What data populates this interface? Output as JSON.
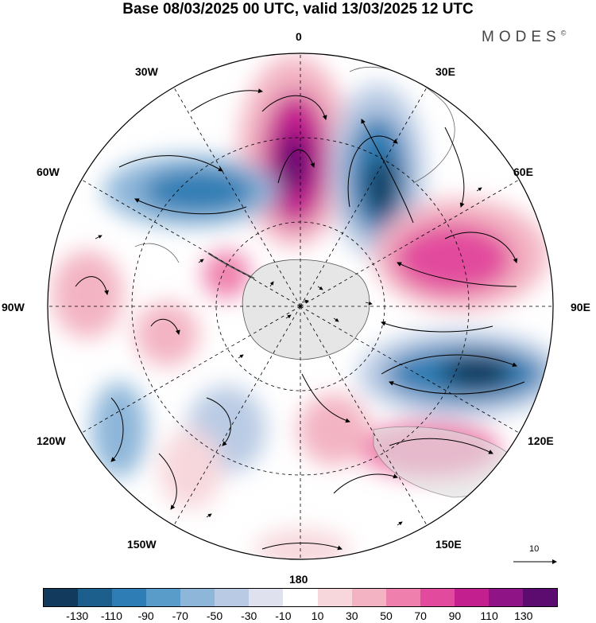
{
  "title": "Base 08/03/2025 00 UTC, valid 13/03/2025 12 UTC",
  "brand": {
    "name": "MODES",
    "mark": "©"
  },
  "longitude_labels": {
    "lon_0": "0",
    "lon_30e": "30E",
    "lon_60e": "60E",
    "lon_90e": "90E",
    "lon_120e": "120E",
    "lon_150e": "150E",
    "lon_180": "180",
    "lon_150w": "150W",
    "lon_120w": "120W",
    "lon_90w": "90W",
    "lon_60w": "60W",
    "lon_30w": "30W"
  },
  "vector_scale": {
    "label": "10"
  },
  "colorbar": {
    "colors": [
      "#123a5c",
      "#1c5e8c",
      "#2e7db4",
      "#5a9cc9",
      "#8db6d9",
      "#b9cbe4",
      "#dfe2ee",
      "#ffffff",
      "#f7d7dc",
      "#f3b3c2",
      "#ef7fac",
      "#e24b9d",
      "#c41f8f",
      "#8f1486",
      "#5b0c6e"
    ],
    "ticks": [
      "-130",
      "-110",
      "-90",
      "-70",
      "-50",
      "-30",
      "-10",
      "10",
      "30",
      "50",
      "70",
      "90",
      "110",
      "130"
    ]
  },
  "anomaly_centers": [
    {
      "lon_offset": 0,
      "value": 120
    },
    {
      "lon_offset": 28,
      "value": -120
    },
    {
      "lon_offset": 70,
      "value": 100
    },
    {
      "lon_offset": 105,
      "value": -110
    },
    {
      "lon_offset": 125,
      "value": 80
    },
    {
      "lon_offset": 145,
      "value": 40
    },
    {
      "lon_offset": -55,
      "value": -80
    },
    {
      "lon_offset": -90,
      "value": 40
    }
  ]
}
